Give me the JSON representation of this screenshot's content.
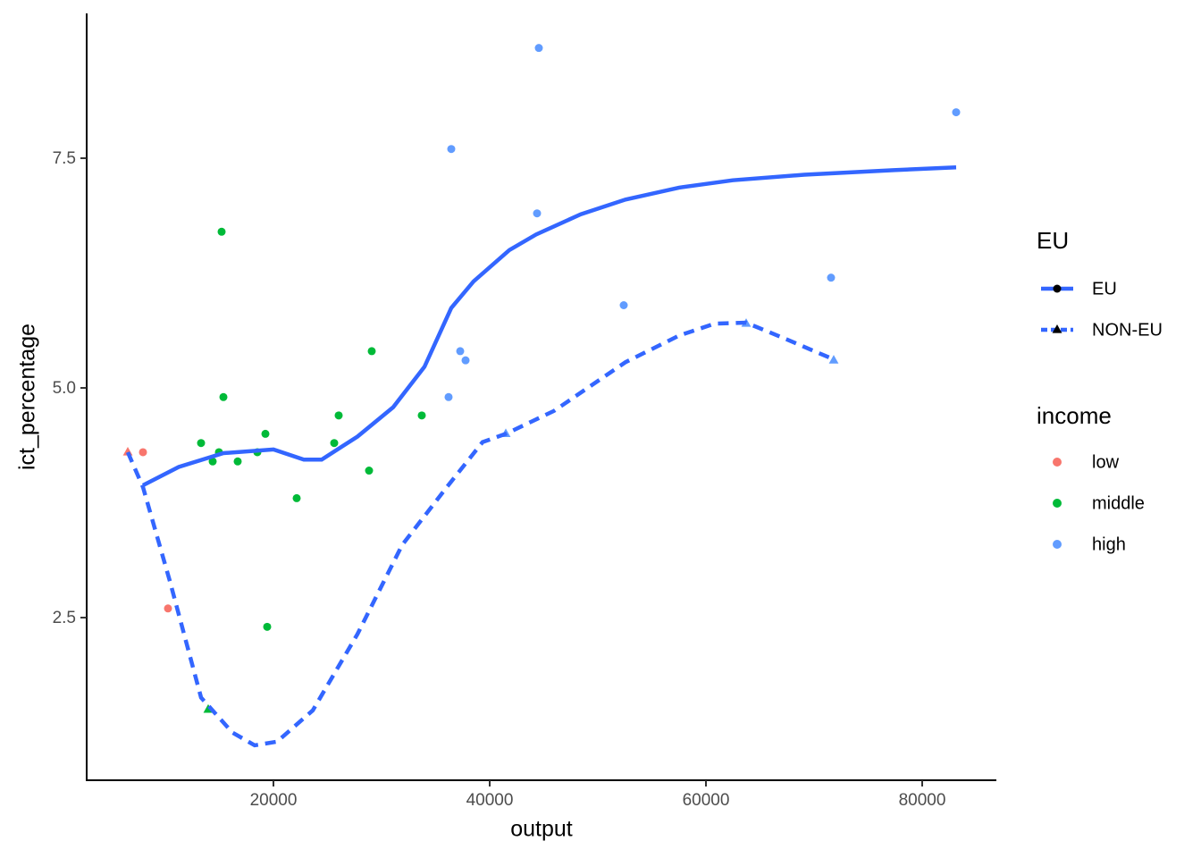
{
  "chart_data": {
    "type": "scatter",
    "x_label": "output",
    "y_label": "ict_percentage",
    "xlim": [
      2727,
      86860
    ],
    "ylim": [
      0.73,
      9.076
    ],
    "xticks": [
      20000,
      40000,
      60000,
      80000
    ],
    "yticks": [
      2.5,
      {
        "value": 5,
        "label": "5.0"
      },
      7.5
    ],
    "line_legend_title": "EU",
    "color_legend_title": "income",
    "line_color": "#3366FF",
    "lines": [
      {
        "name": "EU",
        "linetype": "solid",
        "shape": "circle",
        "x": [
          7934,
          11240,
          15372,
          20000,
          22810,
          24463,
          27769,
          31074,
          33967,
          36446,
          38512,
          41818,
          44298,
          48430,
          52562,
          57521,
          62479,
          69091,
          77355,
          83140
        ],
        "values": [
          3.94,
          4.14,
          4.29,
          4.33,
          4.22,
          4.22,
          4.47,
          4.79,
          5.23,
          5.87,
          6.16,
          6.5,
          6.67,
          6.89,
          7.05,
          7.18,
          7.26,
          7.32,
          7.37,
          7.4
        ]
      },
      {
        "name": "NON-EU",
        "linetype": "dashed",
        "shape": "triangle",
        "x": [
          6529,
          7934,
          10413,
          13306,
          16198,
          18264,
          20331,
          23636,
          27769,
          31901,
          36033,
          39339,
          41488,
          45950,
          52562,
          57521,
          60826,
          63719,
          67438,
          71818
        ],
        "values": [
          4.3,
          3.92,
          2.9,
          1.63,
          1.25,
          1.11,
          1.15,
          1.49,
          2.32,
          3.29,
          3.92,
          4.41,
          4.5,
          4.75,
          5.28,
          5.57,
          5.7,
          5.71,
          5.53,
          5.31
        ]
      }
    ],
    "series": [
      {
        "name": "low",
        "color": "#F8766D",
        "x": [
          6529,
          7934,
          10248
        ],
        "values": [
          4.3,
          4.3,
          2.6
        ],
        "eu": [
          "NON-EU",
          "EU",
          "EU"
        ]
      },
      {
        "name": "middle",
        "color": "#00BA38",
        "x": [
          13306,
          15207,
          15372,
          14380,
          14959,
          16694,
          18512,
          19256,
          19421,
          22149,
          25620,
          26033,
          28843,
          29091,
          33719,
          13967
        ],
        "values": [
          4.4,
          6.7,
          4.9,
          4.2,
          4.3,
          4.2,
          4.3,
          4.5,
          2.4,
          3.8,
          4.4,
          4.7,
          4.1,
          5.4,
          4.7,
          1.5
        ],
        "eu": [
          "EU",
          "EU",
          "EU",
          "EU",
          "EU",
          "EU",
          "EU",
          "EU",
          "EU",
          "EU",
          "EU",
          "EU",
          "EU",
          "EU",
          "EU",
          "NON-EU"
        ]
      },
      {
        "name": "high",
        "color": "#619CFF",
        "x": [
          36446,
          44545,
          44380,
          83140,
          71570,
          52397,
          37273,
          37769,
          36198,
          41488,
          63719,
          71818
        ],
        "values": [
          7.6,
          8.7,
          6.9,
          8.0,
          6.2,
          5.9,
          5.4,
          5.3,
          4.9,
          4.5,
          5.7,
          5.3
        ],
        "eu": [
          "EU",
          "EU",
          "EU",
          "EU",
          "EU",
          "EU",
          "EU",
          "EU",
          "EU",
          "NON-EU",
          "NON-EU",
          "NON-EU"
        ]
      }
    ]
  }
}
